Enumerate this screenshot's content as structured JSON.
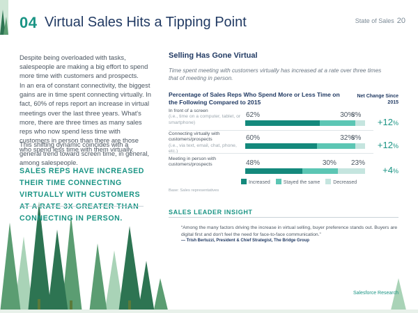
{
  "header": {
    "number": "04",
    "title": "Virtual Sales Hits a Tipping Point",
    "report": "State of Sales",
    "page": "20"
  },
  "left": {
    "para1": "Despite being overloaded with tasks, salespeople are making a big effort to spend more time with customers and prospects.",
    "para2": "In an era of constant connectivity, the biggest gains are in time spent connecting virtually. In fact, 60% of reps report an increase in virtual meetings over the last three years. What's more, there are three times as many sales reps who now spend less time with customers in person than there are those who spend less time with them virtually.",
    "para3": "This shifting dynamic coincides with a general trend toward screen time, in general, among salespeople.",
    "callout": "Sales reps have increased their time connecting virtually with customers at a rate 3x greater than connecting in person."
  },
  "section": {
    "title": "Selling Has Gone Virtual",
    "subtitle": "Time spent meeting with customers virtually has increased at a rate over three times that of meeting in person."
  },
  "chart_data": {
    "type": "bar",
    "title": "Percentage of Sales Reps Who Spend More or Less Time on the Following Compared to 2015",
    "net_header": "Net Change Since 2015",
    "categories": [
      {
        "label": "In front of a screen",
        "sublabel": "(i.e., time on a computer, tablet, or smartphone)"
      },
      {
        "label": "Connecting virtually with customers/prospects",
        "sublabel": "(i.e., via text, email, chat, phone, etc.)"
      },
      {
        "label": "Meeting in person with customers/prospects",
        "sublabel": ""
      }
    ],
    "series": [
      {
        "name": "Increased",
        "color": "#14897c",
        "values": [
          62,
          60,
          48
        ]
      },
      {
        "name": "Stayed the same",
        "color": "#5cc6b4",
        "values": [
          30,
          32,
          30
        ]
      },
      {
        "name": "Decreased",
        "color": "#c5e5df",
        "values": [
          8,
          8,
          23
        ]
      }
    ],
    "value_labels": [
      [
        "62%",
        "30%",
        "8%"
      ],
      [
        "60%",
        "32%",
        "8%"
      ],
      [
        "48%",
        "30%",
        "23%"
      ]
    ],
    "net_change": [
      "+12",
      "+12",
      "+4"
    ],
    "net_unit": "%",
    "source": "Base: Sales representatives"
  },
  "insight": {
    "heading": "SALES LEADER INSIGHT",
    "quote": "“Among the many factors driving the increase in virtual selling, buyer preference stands out. Buyers are digital first and don't feel the need for face-to-face communication.”",
    "attribution": "— Trish Bertuzzi, President & Chief Strategist, The Bridge Group"
  },
  "footer": "Salesforce Research",
  "colors": {
    "teal": "#1a9484",
    "navy": "#213a63",
    "tree_dark": "#1f6b4e",
    "tree_mid": "#3f8f62",
    "tree_light": "#8cc1a0"
  }
}
